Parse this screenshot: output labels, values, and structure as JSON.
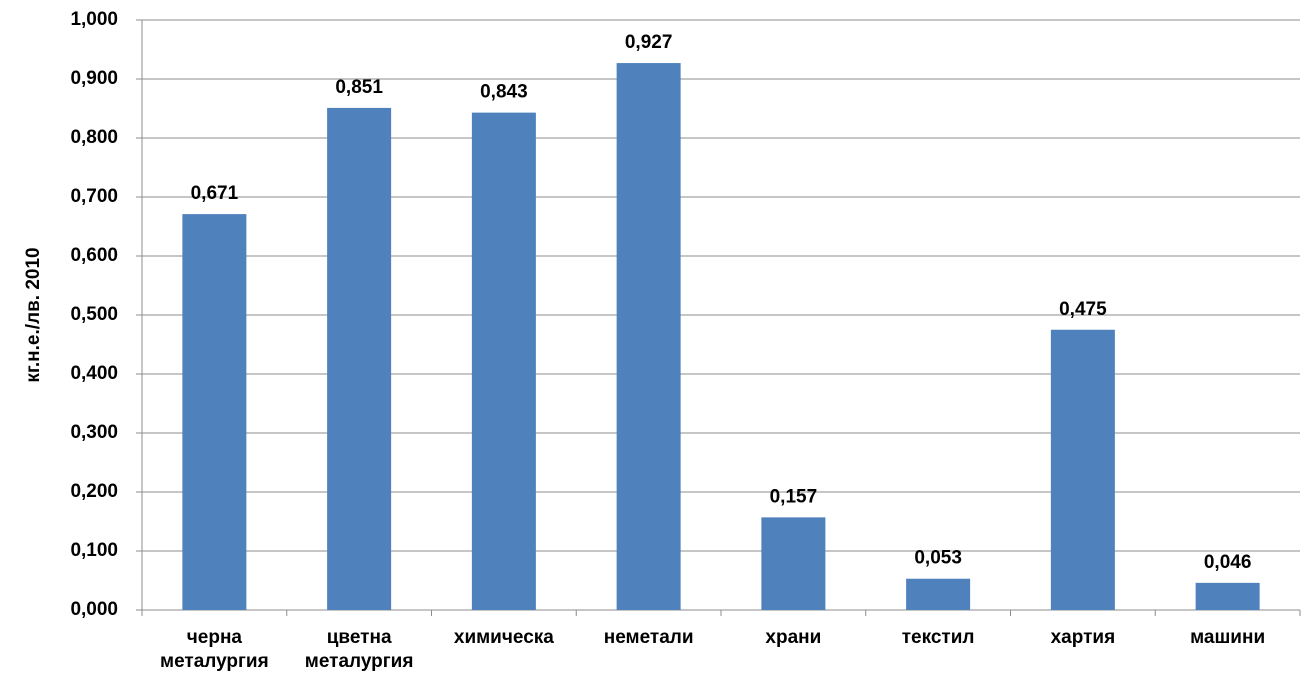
{
  "chart_data": {
    "type": "bar",
    "y_axis_label": "кг.н.е./лв. 2010",
    "categories": [
      "черна металургия",
      "цветна металургия",
      "химическа",
      "неметали",
      "храни",
      "текстил",
      "хартия",
      "машини"
    ],
    "values": [
      0.671,
      0.851,
      0.843,
      0.927,
      0.157,
      0.053,
      0.475,
      0.046
    ],
    "value_labels": [
      "0,671",
      "0,851",
      "0,843",
      "0,927",
      "0,157",
      "0,053",
      "0,475",
      "0,046"
    ],
    "color": "#4f81bd",
    "ylim": [
      0,
      1
    ],
    "yticks": [
      {
        "value": 0,
        "label": "0,000"
      },
      {
        "value": 0.1,
        "label": "0,100"
      },
      {
        "value": 0.2,
        "label": "0,200"
      },
      {
        "value": 0.3,
        "label": "0,300"
      },
      {
        "value": 0.4,
        "label": "0,400"
      },
      {
        "value": 0.5,
        "label": "0,500"
      },
      {
        "value": 0.6,
        "label": "0,600"
      },
      {
        "value": 0.7,
        "label": "0,700"
      },
      {
        "value": 0.8,
        "label": "0,800"
      },
      {
        "value": 0.9,
        "label": "0,900"
      },
      {
        "value": 1,
        "label": "1,000"
      }
    ],
    "grid": true
  }
}
